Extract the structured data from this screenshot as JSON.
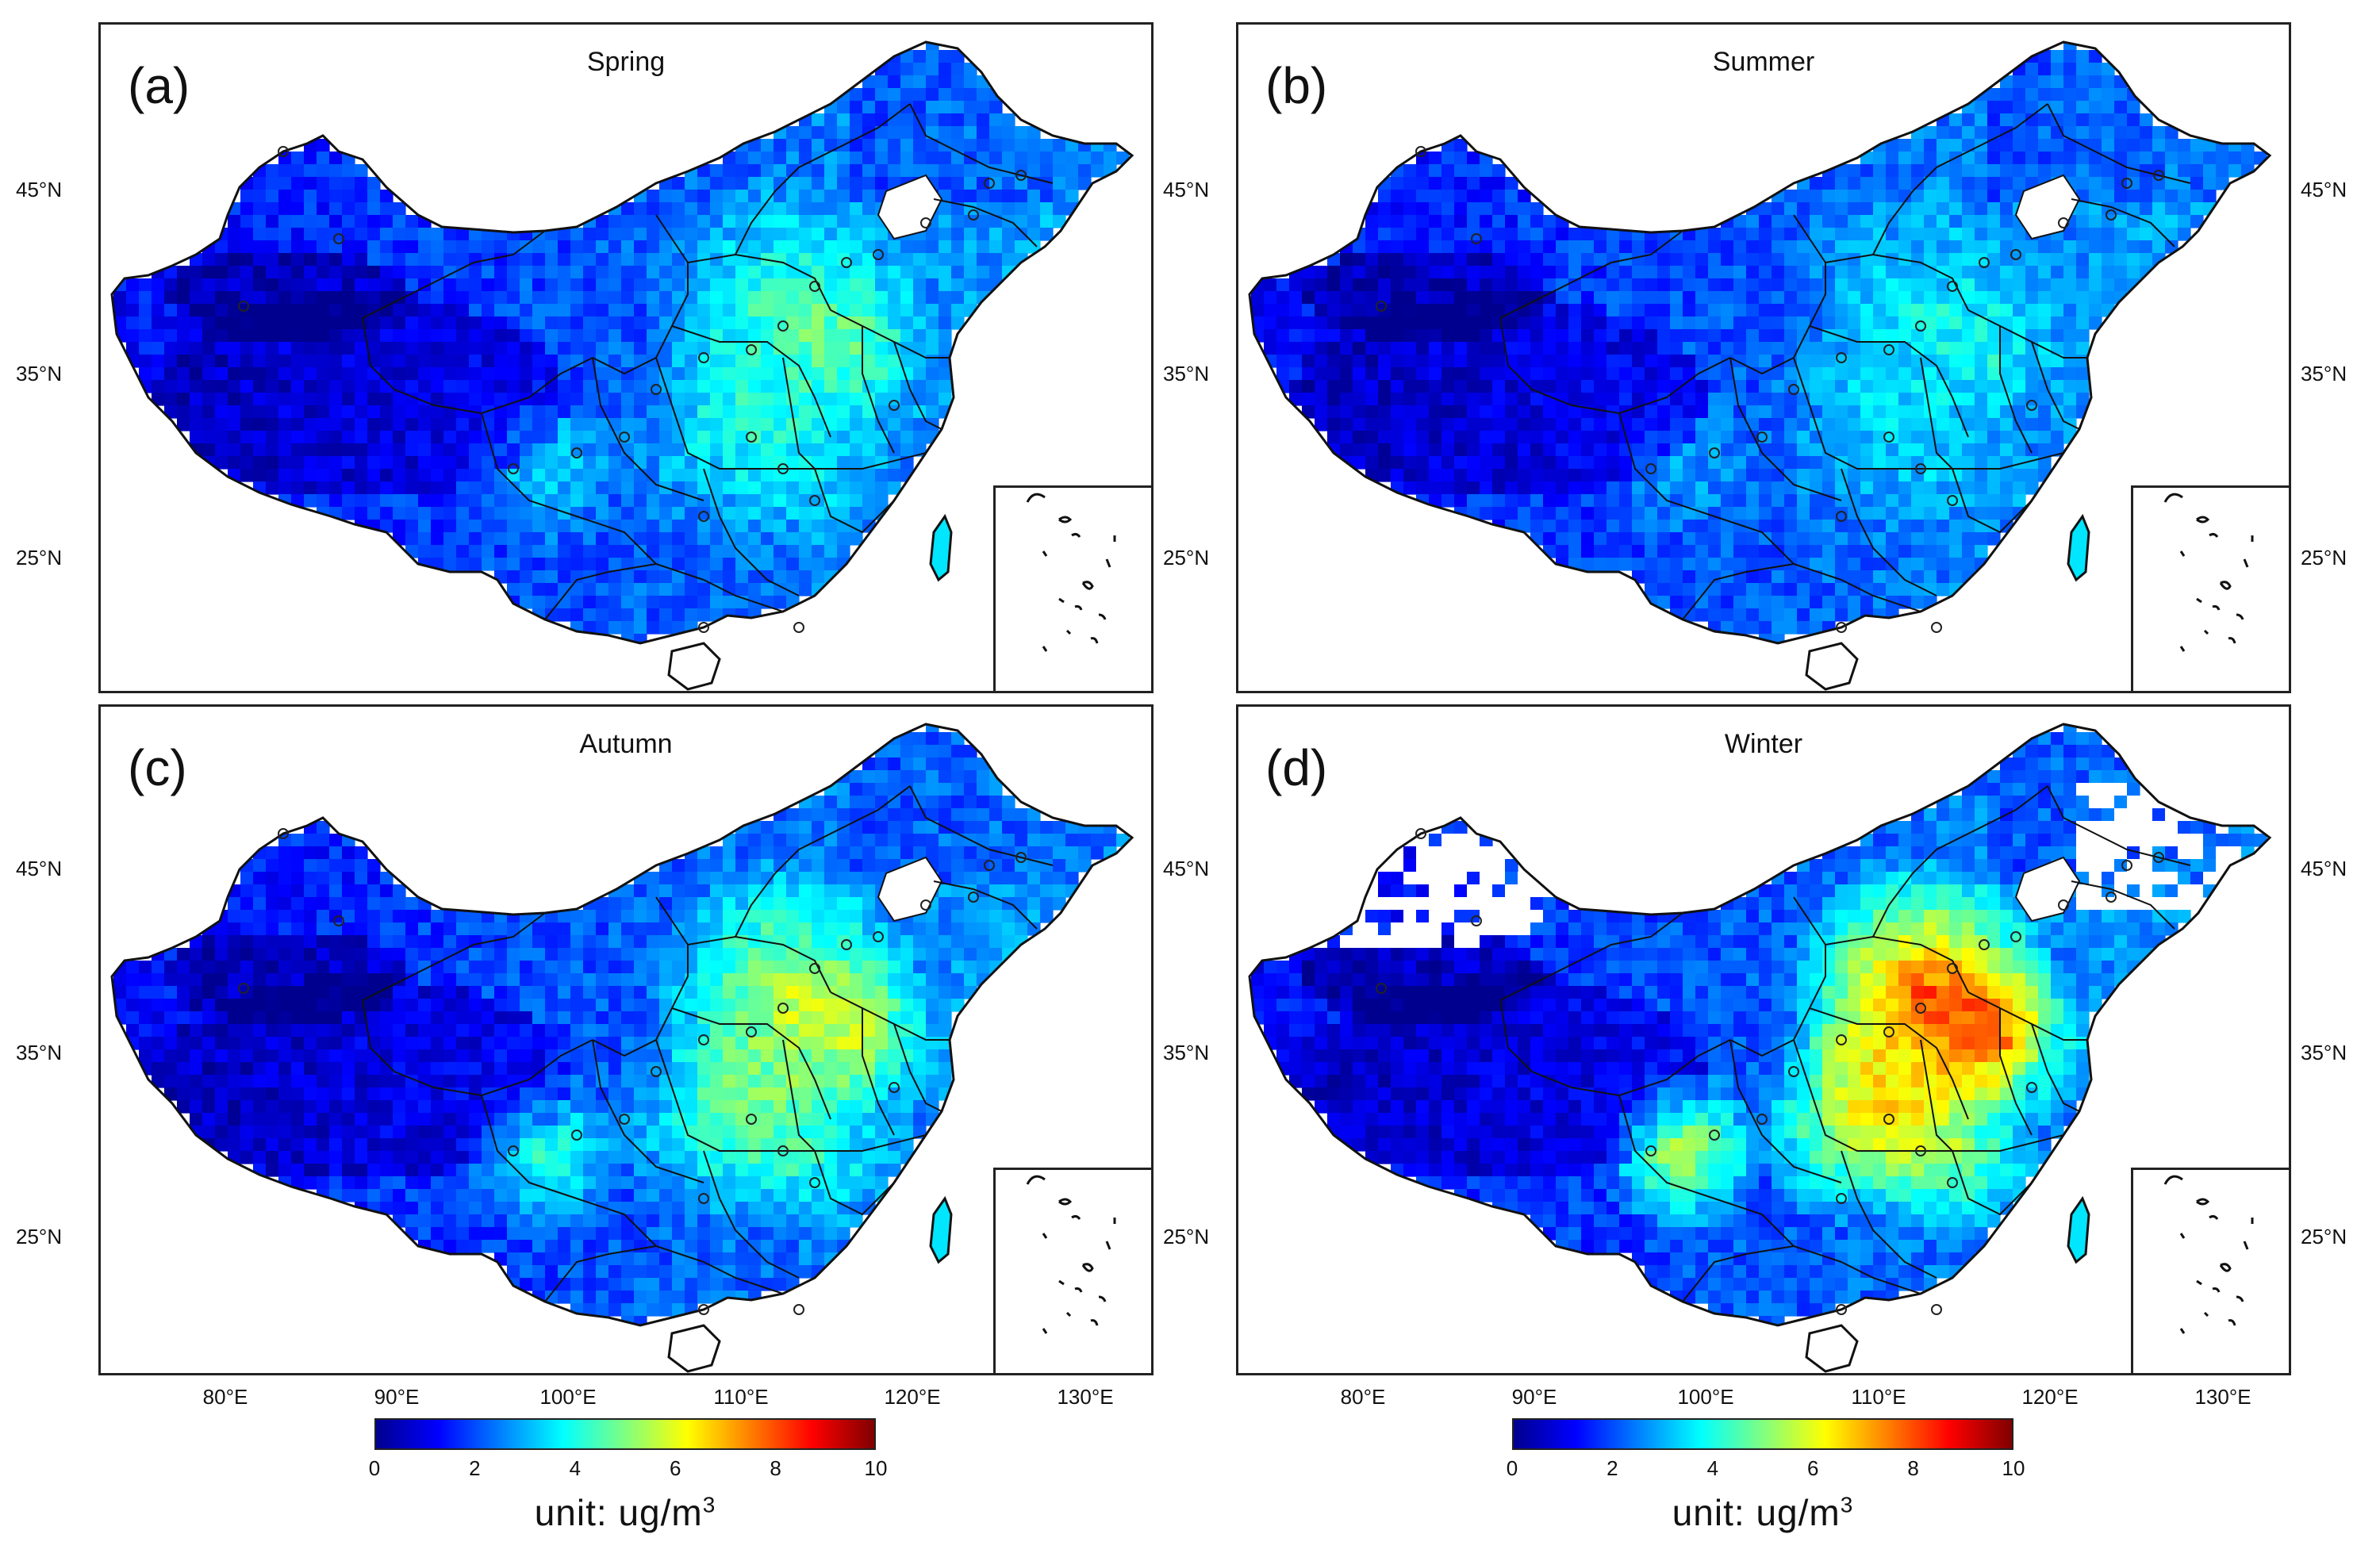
{
  "panels": [
    {
      "label": "(a)",
      "season": "Spring",
      "intensity": 0.3
    },
    {
      "label": "(b)",
      "season": "Summer",
      "intensity": 0.18
    },
    {
      "label": "(c)",
      "season": "Autumn",
      "intensity": 0.45
    },
    {
      "label": "(d)",
      "season": "Winter",
      "intensity": 0.75
    }
  ],
  "lat_labels": [
    "45°N",
    "35°N",
    "25°N"
  ],
  "lon_labels": [
    "80°E",
    "90°E",
    "100°E",
    "110°E",
    "120°E",
    "130°E"
  ],
  "colorbar": {
    "ticks": [
      "0",
      "2",
      "4",
      "6",
      "8",
      "10"
    ],
    "unit_prefix": "unit: ug/m",
    "unit_sup": "3",
    "min": 0,
    "max": 10,
    "colors": [
      "#00008f",
      "#0000ff",
      "#0080ff",
      "#00ffff",
      "#80ff80",
      "#ffff00",
      "#ff8000",
      "#ff0000",
      "#800000"
    ]
  }
}
